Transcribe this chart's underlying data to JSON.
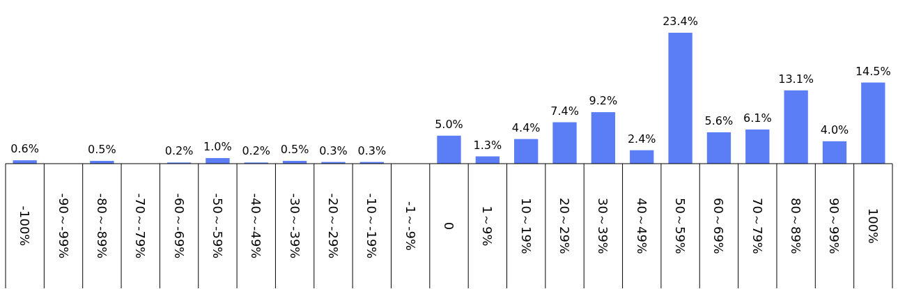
{
  "chart_data": {
    "type": "bar",
    "categories": [
      "-100%",
      "-90～-99%",
      "-80～-89%",
      "-70～-79%",
      "-60～-69%",
      "-50～-59%",
      "-40～-49%",
      "-30～-39%",
      "-20～-29%",
      "-10～-19%",
      "-1～-9%",
      "0",
      "1～9%",
      "10～19%",
      "20～29%",
      "30～39%",
      "40～49%",
      "50～59%",
      "60～69%",
      "70～79%",
      "80～89%",
      "90～99%",
      "100%"
    ],
    "values": [
      0.6,
      null,
      0.5,
      null,
      0.2,
      1.0,
      0.2,
      0.5,
      0.3,
      0.3,
      null,
      5.0,
      1.3,
      4.4,
      7.4,
      9.2,
      2.4,
      23.4,
      5.6,
      6.1,
      13.1,
      4.0,
      14.5
    ],
    "value_labels": [
      "0.6%",
      null,
      "0.5%",
      null,
      "0.2%",
      "1.0%",
      "0.2%",
      "0.5%",
      "0.3%",
      "0.3%",
      null,
      "5.0%",
      "1.3%",
      "4.4%",
      "7.4%",
      "9.2%",
      "2.4%",
      "23.4%",
      "5.6%",
      "6.1%",
      "13.1%",
      "4.0%",
      "14.5%"
    ],
    "color": "#5b7df5"
  }
}
